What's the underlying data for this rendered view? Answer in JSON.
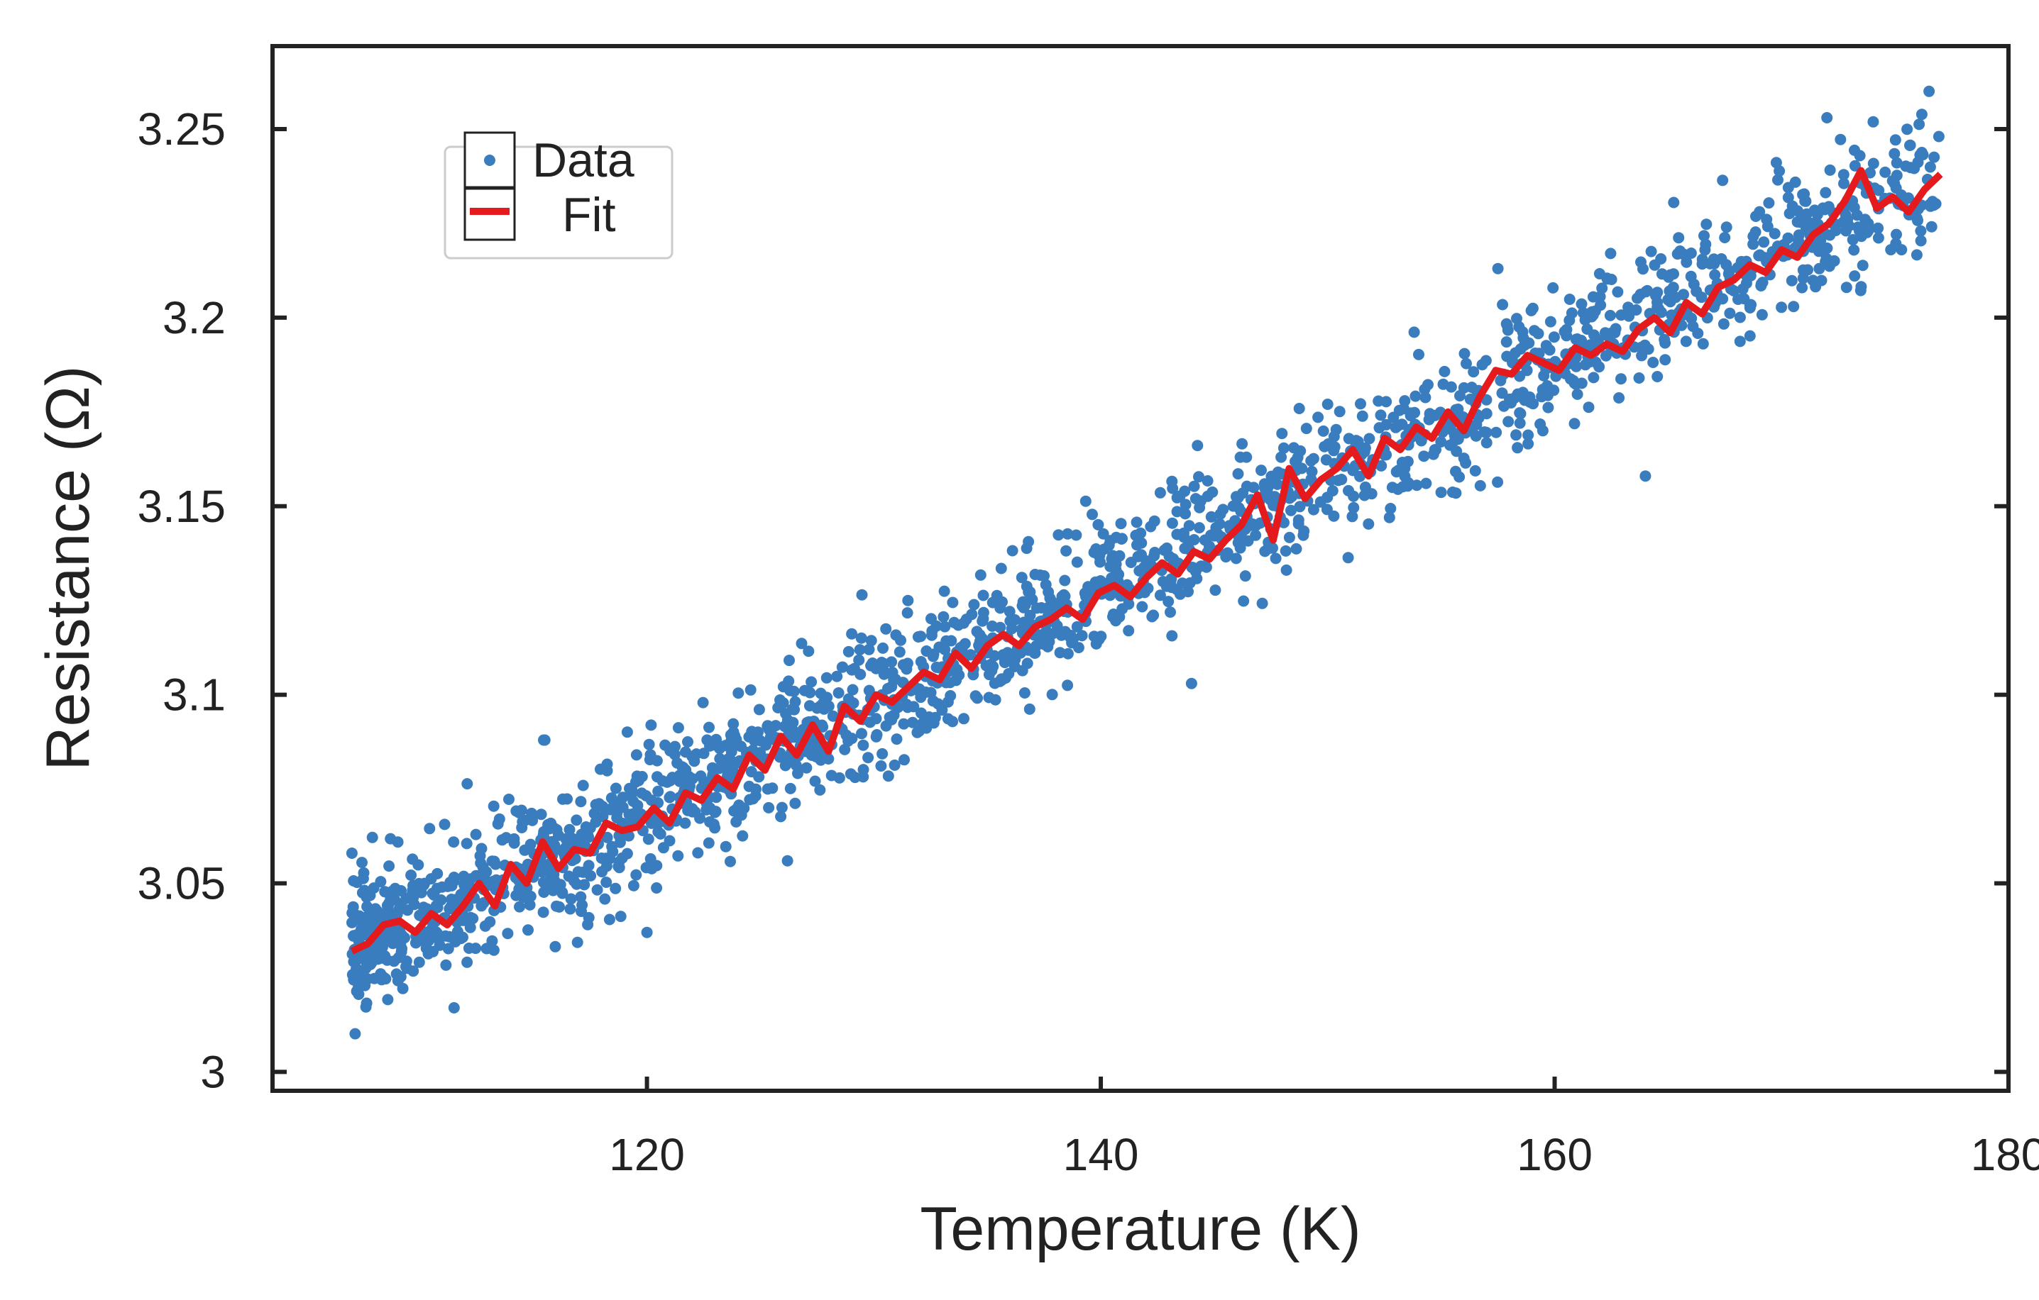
{
  "chart_data": {
    "type": "scatter",
    "title": "",
    "xlabel": "Temperature (K)",
    "ylabel": "Resistance (Ω)",
    "xlim": [
      103.5,
      180
    ],
    "ylim": [
      2.995,
      3.272
    ],
    "xticks": [
      120,
      140,
      160,
      180
    ],
    "xtick_labels": [
      "120",
      "140",
      "160",
      "180"
    ],
    "yticks": [
      3.0,
      3.05,
      3.1,
      3.15,
      3.2,
      3.25
    ],
    "ytick_labels": [
      "3",
      "3.05",
      "3.1",
      "3.15",
      "3.2",
      "3.25"
    ],
    "grid": false,
    "legend_position": "top-left",
    "series": [
      {
        "name": "Data",
        "kind": "scatter",
        "color": "#3a7dbf",
        "x_range": [
          107,
          177
        ],
        "n_points": 2000,
        "trend": [
          [
            107,
            3.033
          ],
          [
            120,
            3.068
          ],
          [
            130,
            3.098
          ],
          [
            140,
            3.128
          ],
          [
            150,
            3.158
          ],
          [
            160,
            3.188
          ],
          [
            170,
            3.218
          ],
          [
            177,
            3.236
          ]
        ],
        "spread_sd": 0.009,
        "highlight_points": [
          [
            107,
            3.058
          ],
          [
            111.5,
            3.017
          ],
          [
            115.5,
            3.088
          ],
          [
            120,
            3.037
          ],
          [
            131.5,
            3.125
          ],
          [
            144,
            3.103
          ],
          [
            157.5,
            3.213
          ],
          [
            164,
            3.158
          ],
          [
            172,
            3.253
          ],
          [
            176.5,
            3.26
          ]
        ]
      },
      {
        "name": "Fit",
        "kind": "line",
        "color": "#e41a1c",
        "points": [
          [
            107,
            3.032
          ],
          [
            107.7,
            3.034
          ],
          [
            108.4,
            3.039
          ],
          [
            109.1,
            3.04
          ],
          [
            109.8,
            3.037
          ],
          [
            110.5,
            3.042
          ],
          [
            111.2,
            3.039
          ],
          [
            111.9,
            3.044
          ],
          [
            112.6,
            3.05
          ],
          [
            113.3,
            3.044
          ],
          [
            114.0,
            3.055
          ],
          [
            114.7,
            3.05
          ],
          [
            115.4,
            3.061
          ],
          [
            116.1,
            3.054
          ],
          [
            116.8,
            3.059
          ],
          [
            117.5,
            3.058
          ],
          [
            118.2,
            3.066
          ],
          [
            118.9,
            3.064
          ],
          [
            119.6,
            3.065
          ],
          [
            120.3,
            3.07
          ],
          [
            121.0,
            3.066
          ],
          [
            121.7,
            3.074
          ],
          [
            122.4,
            3.072
          ],
          [
            123.1,
            3.078
          ],
          [
            123.8,
            3.075
          ],
          [
            124.5,
            3.084
          ],
          [
            125.2,
            3.08
          ],
          [
            125.9,
            3.089
          ],
          [
            126.6,
            3.084
          ],
          [
            127.3,
            3.092
          ],
          [
            128.0,
            3.085
          ],
          [
            128.7,
            3.097
          ],
          [
            129.4,
            3.093
          ],
          [
            130.1,
            3.1
          ],
          [
            130.8,
            3.098
          ],
          [
            131.5,
            3.102
          ],
          [
            132.2,
            3.106
          ],
          [
            132.9,
            3.104
          ],
          [
            133.6,
            3.111
          ],
          [
            134.3,
            3.107
          ],
          [
            135.0,
            3.113
          ],
          [
            135.7,
            3.116
          ],
          [
            136.4,
            3.113
          ],
          [
            137.1,
            3.118
          ],
          [
            137.8,
            3.12
          ],
          [
            138.5,
            3.123
          ],
          [
            139.2,
            3.12
          ],
          [
            139.9,
            3.127
          ],
          [
            140.6,
            3.129
          ],
          [
            141.3,
            3.126
          ],
          [
            142.0,
            3.131
          ],
          [
            142.7,
            3.135
          ],
          [
            143.4,
            3.132
          ],
          [
            144.1,
            3.138
          ],
          [
            144.8,
            3.136
          ],
          [
            145.5,
            3.141
          ],
          [
            146.2,
            3.145
          ],
          [
            146.9,
            3.153
          ],
          [
            147.6,
            3.141
          ],
          [
            148.3,
            3.16
          ],
          [
            149.0,
            3.152
          ],
          [
            149.7,
            3.157
          ],
          [
            150.4,
            3.16
          ],
          [
            151.1,
            3.165
          ],
          [
            151.8,
            3.158
          ],
          [
            152.5,
            3.168
          ],
          [
            153.2,
            3.165
          ],
          [
            153.9,
            3.171
          ],
          [
            154.6,
            3.168
          ],
          [
            155.3,
            3.175
          ],
          [
            156.0,
            3.17
          ],
          [
            156.7,
            3.179
          ],
          [
            157.4,
            3.186
          ],
          [
            158.1,
            3.185
          ],
          [
            158.8,
            3.19
          ],
          [
            159.5,
            3.188
          ],
          [
            160.2,
            3.186
          ],
          [
            160.9,
            3.192
          ],
          [
            161.6,
            3.19
          ],
          [
            162.3,
            3.193
          ],
          [
            163.0,
            3.191
          ],
          [
            163.7,
            3.197
          ],
          [
            164.4,
            3.2
          ],
          [
            165.1,
            3.196
          ],
          [
            165.8,
            3.204
          ],
          [
            166.5,
            3.201
          ],
          [
            167.2,
            3.208
          ],
          [
            167.9,
            3.21
          ],
          [
            168.6,
            3.214
          ],
          [
            169.3,
            3.212
          ],
          [
            170.0,
            3.218
          ],
          [
            170.7,
            3.216
          ],
          [
            171.4,
            3.222
          ],
          [
            172.1,
            3.225
          ],
          [
            172.8,
            3.231
          ],
          [
            173.5,
            3.239
          ],
          [
            174.2,
            3.229
          ],
          [
            174.9,
            3.232
          ],
          [
            175.6,
            3.228
          ],
          [
            176.3,
            3.234
          ],
          [
            177.0,
            3.238
          ]
        ]
      }
    ]
  }
}
